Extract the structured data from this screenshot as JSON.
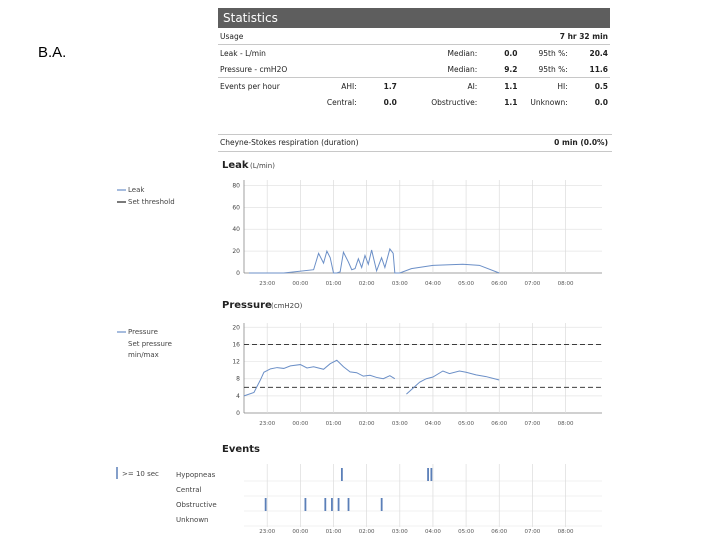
{
  "corner_label": "B.A.",
  "statistics": {
    "title": "Statistics",
    "usage_label": "Usage",
    "usage_value": "7 hr 32 min",
    "leak": {
      "label": "Leak - L/min",
      "median_label": "Median:",
      "median": "0.0",
      "p95_label": "95th %:",
      "p95": "20.4"
    },
    "pressure": {
      "label": "Pressure - cmH2O",
      "median_label": "Median:",
      "median": "9.2",
      "p95_label": "95th %:",
      "p95": "11.6"
    },
    "events": {
      "label": "Events per hour",
      "ahi_label": "AHI:",
      "ahi": "1.7",
      "ai_label": "AI:",
      "ai": "1.1",
      "hi_label": "HI:",
      "hi": "0.5",
      "central_label": "Central:",
      "central": "0.0",
      "obstructive_label": "Obstructive:",
      "obstructive": "1.1",
      "unknown_label": "Unknown:",
      "unknown": "0.0"
    },
    "cheyne_label": "Cheyne-Stokes respiration (duration)",
    "cheyne_value": "0 min (0.0%)"
  },
  "time_ticks": [
    "23:00",
    "00:00",
    "01:00",
    "02:00",
    "03:00",
    "04:00",
    "05:00",
    "06:00",
    "07:00",
    "08:00"
  ],
  "chart_data": [
    {
      "type": "line",
      "title": "Leak",
      "unit": "(L/min)",
      "ylabel": "L/min",
      "yticks": [
        0,
        20,
        40,
        60,
        80
      ],
      "ylim": [
        0,
        85
      ],
      "x_range_hours": [
        -1.7,
        9.1
      ],
      "legend": [
        "Leak",
        "Set threshold"
      ],
      "series": [
        {
          "name": "Leak",
          "color": "#6b8fc7",
          "x": [
            -1.55,
            -0.5,
            0.4,
            0.55,
            0.7,
            0.8,
            0.9,
            1.0,
            1.1,
            1.2,
            1.3,
            1.45,
            1.55,
            1.65,
            1.75,
            1.85,
            1.95,
            2.05,
            2.15,
            2.3,
            2.45,
            2.55,
            2.7,
            2.8,
            2.85,
            3.0,
            3.35,
            4.0,
            4.9,
            5.4,
            6.0
          ],
          "y": [
            0,
            0,
            3,
            18,
            9,
            20,
            14,
            0,
            0,
            1,
            19,
            10,
            3,
            4,
            13,
            5,
            16,
            8,
            21,
            2,
            14,
            5,
            22,
            18,
            0,
            0,
            4,
            7,
            8,
            7,
            0
          ]
        }
      ]
    },
    {
      "type": "line",
      "title": "Pressure",
      "unit": "(cmH2O)",
      "ylabel": "cmH2O",
      "yticks": [
        0,
        4,
        8,
        12,
        16,
        20
      ],
      "ylim": [
        0,
        21
      ],
      "x_range_hours": [
        -1.7,
        9.1
      ],
      "legend": [
        "Pressure",
        "Set pressure",
        "min/max"
      ],
      "set_pressure_min": 6,
      "set_pressure_max": 16,
      "series": [
        {
          "name": "Pressure",
          "color": "#6b8fc7",
          "segments": [
            {
              "x": [
                -1.7,
                -1.4,
                -1.2,
                -1.1,
                -0.9,
                -0.7,
                -0.5,
                -0.3,
                0.0,
                0.2,
                0.4,
                0.7,
                0.9,
                1.1,
                1.3,
                1.5,
                1.7,
                1.9,
                2.1,
                2.3,
                2.5,
                2.7,
                2.85
              ],
              "y": [
                4,
                4.8,
                7.8,
                9.5,
                10.3,
                10.6,
                10.4,
                11.0,
                11.3,
                10.5,
                10.8,
                10.2,
                11.5,
                12.3,
                10.8,
                9.6,
                9.4,
                8.6,
                8.8,
                8.3,
                8.0,
                8.7,
                8.0
              ]
            },
            {
              "x": [
                3.2,
                3.4,
                3.6,
                3.8,
                4.0,
                4.3,
                4.5,
                4.8,
                5.0,
                5.3,
                5.6,
                5.9,
                6.0
              ],
              "y": [
                4.4,
                5.8,
                7.2,
                8.0,
                8.4,
                9.8,
                9.2,
                9.8,
                9.5,
                8.9,
                8.5,
                7.9,
                7.7
              ]
            }
          ]
        }
      ]
    },
    {
      "type": "event",
      "title": "Events",
      "legend": [
        ">= 10 sec"
      ],
      "rows": [
        {
          "name": "Hypopneas",
          "times": [
            1.25,
            3.85,
            3.95
          ]
        },
        {
          "name": "Central",
          "times": []
        },
        {
          "name": "Obstructive",
          "times": [
            -1.05,
            0.15,
            0.75,
            0.95,
            1.15,
            1.45,
            2.45
          ]
        },
        {
          "name": "Unknown",
          "times": []
        }
      ]
    }
  ]
}
